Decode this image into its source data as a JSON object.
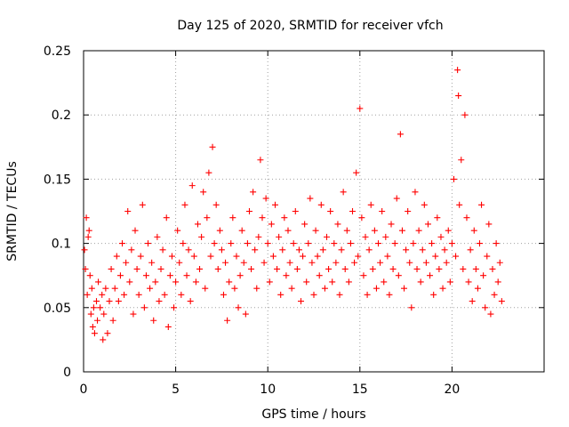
{
  "chart_data": {
    "type": "scatter",
    "title": "Day 125 of 2020, SRMTID for receiver vfch",
    "xlabel": "GPS time / hours",
    "ylabel": "SRMTID / TECUs",
    "xlim": [
      0,
      25
    ],
    "ylim": [
      0,
      0.25
    ],
    "grid": true,
    "marker": "+",
    "series_color": "#ff0000",
    "xticks": [
      0,
      5,
      10,
      15,
      20
    ],
    "xtick_labels": [
      "0",
      "5",
      "10",
      "15",
      "20"
    ],
    "yticks": [
      0,
      0.05,
      0.1,
      0.15,
      0.2,
      0.25
    ],
    "ytick_labels": [
      "0",
      "0.05",
      "0.1",
      "0.15",
      "0.2",
      "0.25"
    ],
    "series": [
      {
        "name": "SRMTID",
        "points": [
          [
            0.05,
            0.095
          ],
          [
            0.1,
            0.08
          ],
          [
            0.15,
            0.12
          ],
          [
            0.2,
            0.06
          ],
          [
            0.25,
            0.105
          ],
          [
            0.3,
            0.11
          ],
          [
            0.35,
            0.075
          ],
          [
            0.4,
            0.045
          ],
          [
            0.45,
            0.065
          ],
          [
            0.5,
            0.035
          ],
          [
            0.55,
            0.05
          ],
          [
            0.6,
            0.03
          ],
          [
            0.7,
            0.055
          ],
          [
            0.75,
            0.04
          ],
          [
            0.8,
            0.07
          ],
          [
            0.9,
            0.05
          ],
          [
            1.0,
            0.06
          ],
          [
            1.05,
            0.025
          ],
          [
            1.1,
            0.045
          ],
          [
            1.2,
            0.065
          ],
          [
            1.3,
            0.03
          ],
          [
            1.4,
            0.055
          ],
          [
            1.5,
            0.08
          ],
          [
            1.6,
            0.04
          ],
          [
            1.7,
            0.065
          ],
          [
            1.8,
            0.09
          ],
          [
            1.9,
            0.055
          ],
          [
            2.0,
            0.075
          ],
          [
            2.1,
            0.1
          ],
          [
            2.2,
            0.06
          ],
          [
            2.3,
            0.085
          ],
          [
            2.4,
            0.125
          ],
          [
            2.5,
            0.07
          ],
          [
            2.6,
            0.095
          ],
          [
            2.7,
            0.045
          ],
          [
            2.8,
            0.11
          ],
          [
            2.9,
            0.08
          ],
          [
            3.0,
            0.06
          ],
          [
            3.1,
            0.09
          ],
          [
            3.2,
            0.13
          ],
          [
            3.3,
            0.05
          ],
          [
            3.4,
            0.075
          ],
          [
            3.5,
            0.1
          ],
          [
            3.6,
            0.065
          ],
          [
            3.7,
            0.085
          ],
          [
            3.8,
            0.04
          ],
          [
            3.9,
            0.07
          ],
          [
            4.0,
            0.105
          ],
          [
            4.1,
            0.055
          ],
          [
            4.2,
            0.08
          ],
          [
            4.3,
            0.095
          ],
          [
            4.4,
            0.06
          ],
          [
            4.5,
            0.12
          ],
          [
            4.6,
            0.035
          ],
          [
            4.7,
            0.075
          ],
          [
            4.8,
            0.09
          ],
          [
            4.9,
            0.05
          ],
          [
            5.0,
            0.07
          ],
          [
            5.1,
            0.11
          ],
          [
            5.2,
            0.085
          ],
          [
            5.3,
            0.06
          ],
          [
            5.4,
            0.1
          ],
          [
            5.5,
            0.13
          ],
          [
            5.6,
            0.075
          ],
          [
            5.7,
            0.095
          ],
          [
            5.8,
            0.055
          ],
          [
            5.9,
            0.145
          ],
          [
            6.0,
            0.09
          ],
          [
            6.1,
            0.07
          ],
          [
            6.2,
            0.115
          ],
          [
            6.3,
            0.08
          ],
          [
            6.4,
            0.105
          ],
          [
            6.5,
            0.14
          ],
          [
            6.6,
            0.065
          ],
          [
            6.7,
            0.12
          ],
          [
            6.8,
            0.155
          ],
          [
            6.9,
            0.09
          ],
          [
            7.0,
            0.175
          ],
          [
            7.1,
            0.1
          ],
          [
            7.2,
            0.13
          ],
          [
            7.3,
            0.08
          ],
          [
            7.4,
            0.11
          ],
          [
            7.5,
            0.095
          ],
          [
            7.6,
            0.06
          ],
          [
            7.7,
            0.085
          ],
          [
            7.8,
            0.04
          ],
          [
            7.9,
            0.07
          ],
          [
            8.0,
            0.1
          ],
          [
            8.1,
            0.12
          ],
          [
            8.2,
            0.065
          ],
          [
            8.3,
            0.09
          ],
          [
            8.4,
            0.05
          ],
          [
            8.5,
            0.075
          ],
          [
            8.6,
            0.11
          ],
          [
            8.7,
            0.085
          ],
          [
            8.8,
            0.045
          ],
          [
            8.9,
            0.1
          ],
          [
            9.0,
            0.125
          ],
          [
            9.1,
            0.08
          ],
          [
            9.2,
            0.14
          ],
          [
            9.3,
            0.095
          ],
          [
            9.4,
            0.065
          ],
          [
            9.5,
            0.105
          ],
          [
            9.6,
            0.165
          ],
          [
            9.7,
            0.12
          ],
          [
            9.8,
            0.085
          ],
          [
            9.9,
            0.135
          ],
          [
            10.0,
            0.1
          ],
          [
            10.1,
            0.07
          ],
          [
            10.2,
            0.115
          ],
          [
            10.3,
            0.09
          ],
          [
            10.4,
            0.13
          ],
          [
            10.5,
            0.08
          ],
          [
            10.6,
            0.105
          ],
          [
            10.7,
            0.06
          ],
          [
            10.8,
            0.095
          ],
          [
            10.9,
            0.12
          ],
          [
            11.0,
            0.075
          ],
          [
            11.1,
            0.11
          ],
          [
            11.2,
            0.085
          ],
          [
            11.3,
            0.065
          ],
          [
            11.4,
            0.1
          ],
          [
            11.5,
            0.125
          ],
          [
            11.6,
            0.08
          ],
          [
            11.7,
            0.095
          ],
          [
            11.8,
            0.055
          ],
          [
            11.9,
            0.09
          ],
          [
            12.0,
            0.115
          ],
          [
            12.1,
            0.07
          ],
          [
            12.2,
            0.1
          ],
          [
            12.3,
            0.135
          ],
          [
            12.4,
            0.085
          ],
          [
            12.5,
            0.06
          ],
          [
            12.6,
            0.11
          ],
          [
            12.7,
            0.09
          ],
          [
            12.8,
            0.075
          ],
          [
            12.9,
            0.13
          ],
          [
            13.0,
            0.095
          ],
          [
            13.1,
            0.065
          ],
          [
            13.2,
            0.105
          ],
          [
            13.3,
            0.08
          ],
          [
            13.4,
            0.125
          ],
          [
            13.5,
            0.07
          ],
          [
            13.6,
            0.1
          ],
          [
            13.7,
            0.085
          ],
          [
            13.8,
            0.115
          ],
          [
            13.9,
            0.06
          ],
          [
            14.0,
            0.095
          ],
          [
            14.1,
            0.14
          ],
          [
            14.2,
            0.08
          ],
          [
            14.3,
            0.11
          ],
          [
            14.4,
            0.07
          ],
          [
            14.5,
            0.1
          ],
          [
            14.6,
            0.125
          ],
          [
            14.7,
            0.085
          ],
          [
            14.8,
            0.155
          ],
          [
            14.9,
            0.09
          ],
          [
            15.0,
            0.205
          ],
          [
            15.1,
            0.12
          ],
          [
            15.2,
            0.075
          ],
          [
            15.3,
            0.105
          ],
          [
            15.4,
            0.06
          ],
          [
            15.5,
            0.095
          ],
          [
            15.6,
            0.13
          ],
          [
            15.7,
            0.08
          ],
          [
            15.8,
            0.11
          ],
          [
            15.9,
            0.065
          ],
          [
            16.0,
            0.1
          ],
          [
            16.1,
            0.085
          ],
          [
            16.2,
            0.125
          ],
          [
            16.3,
            0.07
          ],
          [
            16.4,
            0.105
          ],
          [
            16.5,
            0.09
          ],
          [
            16.6,
            0.06
          ],
          [
            16.7,
            0.115
          ],
          [
            16.8,
            0.08
          ],
          [
            16.9,
            0.1
          ],
          [
            17.0,
            0.135
          ],
          [
            17.1,
            0.075
          ],
          [
            17.2,
            0.185
          ],
          [
            17.3,
            0.11
          ],
          [
            17.4,
            0.065
          ],
          [
            17.5,
            0.095
          ],
          [
            17.6,
            0.125
          ],
          [
            17.7,
            0.085
          ],
          [
            17.8,
            0.05
          ],
          [
            17.9,
            0.1
          ],
          [
            18.0,
            0.14
          ],
          [
            18.1,
            0.08
          ],
          [
            18.2,
            0.11
          ],
          [
            18.3,
            0.07
          ],
          [
            18.4,
            0.095
          ],
          [
            18.5,
            0.13
          ],
          [
            18.6,
            0.085
          ],
          [
            18.7,
            0.115
          ],
          [
            18.8,
            0.075
          ],
          [
            18.9,
            0.1
          ],
          [
            19.0,
            0.06
          ],
          [
            19.1,
            0.09
          ],
          [
            19.2,
            0.12
          ],
          [
            19.3,
            0.08
          ],
          [
            19.4,
            0.105
          ],
          [
            19.5,
            0.065
          ],
          [
            19.6,
            0.095
          ],
          [
            19.7,
            0.085
          ],
          [
            19.8,
            0.11
          ],
          [
            19.9,
            0.07
          ],
          [
            20.0,
            0.1
          ],
          [
            20.1,
            0.15
          ],
          [
            20.2,
            0.09
          ],
          [
            20.3,
            0.235
          ],
          [
            20.35,
            0.215
          ],
          [
            20.4,
            0.13
          ],
          [
            20.5,
            0.165
          ],
          [
            20.6,
            0.08
          ],
          [
            20.7,
            0.2
          ],
          [
            20.8,
            0.12
          ],
          [
            20.9,
            0.07
          ],
          [
            21.0,
            0.095
          ],
          [
            21.1,
            0.055
          ],
          [
            21.2,
            0.11
          ],
          [
            21.3,
            0.08
          ],
          [
            21.4,
            0.065
          ],
          [
            21.5,
            0.1
          ],
          [
            21.6,
            0.13
          ],
          [
            21.7,
            0.075
          ],
          [
            21.8,
            0.05
          ],
          [
            21.9,
            0.09
          ],
          [
            22.0,
            0.115
          ],
          [
            22.1,
            0.045
          ],
          [
            22.2,
            0.08
          ],
          [
            22.3,
            0.06
          ],
          [
            22.4,
            0.1
          ],
          [
            22.5,
            0.07
          ],
          [
            22.6,
            0.085
          ],
          [
            22.7,
            0.055
          ]
        ]
      }
    ]
  }
}
